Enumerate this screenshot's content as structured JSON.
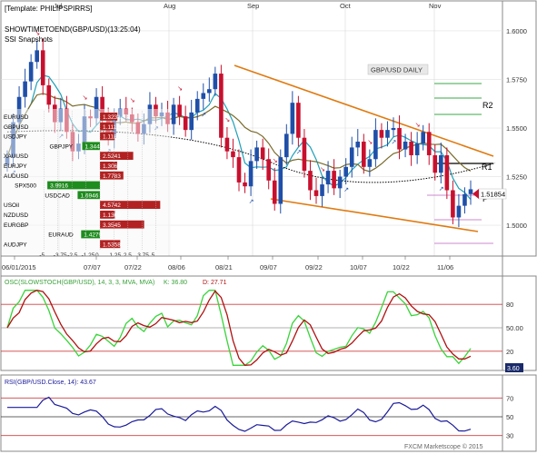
{
  "header": {
    "template": "[Template: PHILIPSPIRRS]",
    "show_time": "SHOWTIMETOEND(GBP/USD)(13:25:04)",
    "ssi": "SSI Snapshots"
  },
  "months": [
    "Jul",
    "Aug",
    "Sep",
    "Oct",
    "Nov"
  ],
  "date_labels": [
    "06/01/2015",
    "07/07",
    "07/22",
    "08/06",
    "08/21",
    "09/07",
    "09/22",
    "10/07",
    "10/22",
    "11/06"
  ],
  "price_axis": {
    "ticks": [
      "1.6000",
      "1.5750",
      "1.5500",
      "1.5250",
      "1.5000"
    ],
    "ylim": [
      1.486,
      1.614
    ]
  },
  "chart_title": "GBP/USD DAILY",
  "levels": {
    "r2": "R2",
    "r1": "R1",
    "p": "P",
    "current": "1.51854"
  },
  "ssi_rows": [
    {
      "name": "EURUSD",
      "value": "1.3231",
      "color": "#b22222"
    },
    {
      "name": "GBPUSD",
      "value": "1.1111",
      "color": "#b22222"
    },
    {
      "name": "USDJPY",
      "value": "1.1180",
      "color": "#b22222"
    },
    {
      "name": "GBPJPY",
      "value": "1.3441",
      "color": "#1e8c1e"
    },
    {
      "name": "XAUUSD",
      "value": "2.5241",
      "color": "#b22222"
    },
    {
      "name": "EURJPY",
      "value": "1.3064",
      "color": "#b22222"
    },
    {
      "name": "AUDUSD",
      "value": "1.7783",
      "color": "#b22222"
    },
    {
      "name": "SPX500",
      "value": "3.9916",
      "color": "#1e8c1e"
    },
    {
      "name": "USDCAD",
      "value": "1.6946",
      "color": "#1e8c1e"
    },
    {
      "name": "USOil",
      "value": "4.5742",
      "color": "#b22222"
    },
    {
      "name": "NZDUSD",
      "value": "1.1309",
      "color": "#b22222"
    },
    {
      "name": "EURGBP",
      "value": "3.3545",
      "color": "#b22222"
    },
    {
      "name": "EURAUD",
      "value": "1.4279",
      "color": "#1e8c1e"
    },
    {
      "name": "AUDJPY",
      "value": "1.5358",
      "color": "#b22222"
    }
  ],
  "ssi_scale": {
    "labels": [
      "-5",
      "-3.75",
      "-2.5",
      "-1.25",
      "0",
      "1.25",
      "2.5",
      "3.75",
      "5"
    ],
    "short": "Short",
    "long": "Long"
  },
  "stoch": {
    "label": "OSC(SLOWSTOCH(GBP/USD), 14, 3, 3, MVA, MVA)",
    "k_text": "K: 36.80",
    "d_text": "D: 27.71",
    "ticks": [
      "80",
      "50.00",
      "20"
    ],
    "current": "3.60"
  },
  "rsi": {
    "label": "RSI(GBP/USD.Close, 14): 43.67",
    "ticks": [
      "70",
      "50",
      "30"
    ]
  },
  "footer": "FXCM Marketscope © 2015",
  "colors": {
    "up": "#1f4fa8",
    "down": "#c8102e",
    "trend": "#e07a10",
    "ma_fast": "#1fa0b8",
    "ma_slow": "#7a6a2a",
    "ma_dotted": "#000000",
    "stoch_k": "#39d43a",
    "stoch_d": "#b01010",
    "rsi": "#1a1a9a",
    "level_red": "#d04040"
  },
  "chart_data": {
    "type": "line",
    "title": "GBP/USD DAILY",
    "series": [
      {
        "values": [
          1.535,
          1.553,
          1.566,
          1.574,
          1.584,
          1.59,
          1.572,
          1.562,
          1.553,
          1.56,
          1.548,
          1.538,
          1.542,
          1.556,
          1.555,
          1.566,
          1.554,
          1.545,
          1.556,
          1.56,
          1.557,
          1.553,
          1.547,
          1.552,
          1.562,
          1.556,
          1.558,
          1.552,
          1.562,
          1.556,
          1.549,
          1.558,
          1.565,
          1.568,
          1.57,
          1.578,
          1.545,
          1.538,
          1.535,
          1.522,
          1.52,
          1.533,
          1.54,
          1.534,
          1.523,
          1.511,
          1.535,
          1.547,
          1.563,
          1.545,
          1.528,
          1.518,
          1.515,
          1.521,
          1.528,
          1.519,
          1.525,
          1.53,
          1.54,
          1.543,
          1.53,
          1.534,
          1.549,
          1.545,
          1.549,
          1.55,
          1.539,
          1.543,
          1.536,
          1.542,
          1.548,
          1.536,
          1.527,
          1.536,
          1.518,
          1.504,
          1.51,
          1.516,
          1.5185
        ]
      }
    ],
    "ylim": [
      1.486,
      1.614
    ]
  }
}
